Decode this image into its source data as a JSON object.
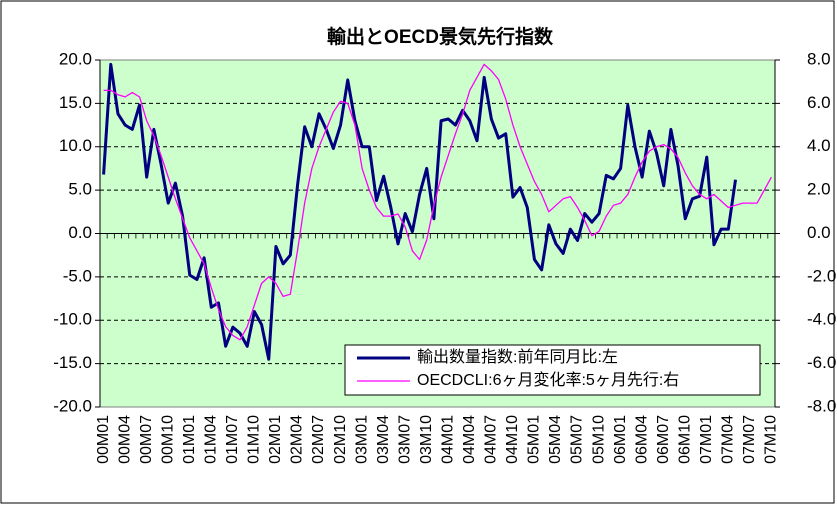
{
  "chart_data": {
    "type": "line",
    "title": "輸出とOECD景気先行指数",
    "categories": [
      "00M01",
      null,
      null,
      "00M04",
      null,
      null,
      "00M07",
      null,
      null,
      "00M10",
      null,
      null,
      "01M01",
      null,
      null,
      "01M04",
      null,
      null,
      "01M07",
      null,
      null,
      "01M10",
      null,
      null,
      "02M01",
      null,
      null,
      "02M04",
      null,
      null,
      "02M07",
      null,
      null,
      "02M10",
      null,
      null,
      "03M01",
      null,
      null,
      "03M04",
      null,
      null,
      "03M07",
      null,
      null,
      "03M10",
      null,
      null,
      "04M01",
      null,
      null,
      "04M04",
      null,
      null,
      "04M07",
      null,
      null,
      "04M10",
      null,
      null,
      "05M01",
      null,
      null,
      "05M04",
      null,
      null,
      "05M07",
      null,
      null,
      "05M10",
      null,
      null,
      "06M01",
      null,
      null,
      "06M04",
      null,
      null,
      "06M07",
      null,
      null,
      "06M10",
      null,
      null,
      "07M01",
      null,
      null,
      "07M04",
      null,
      null,
      "07M07",
      null,
      null,
      "07M10"
    ],
    "series": [
      {
        "name": "輸出数量指数:前年同月比:左",
        "color": "#000080",
        "axis": "y",
        "values": [
          6.8,
          19.5,
          13.8,
          12.5,
          12.0,
          14.8,
          6.5,
          12.0,
          8.0,
          3.5,
          5.8,
          2.0,
          -4.8,
          -5.3,
          -2.8,
          -8.5,
          -8.0,
          -13.0,
          -10.8,
          -11.5,
          -13.0,
          -9.0,
          -10.5,
          -14.5,
          -1.5,
          -3.5,
          -2.5,
          5.5,
          12.3,
          10.0,
          13.8,
          12.0,
          9.8,
          12.5,
          17.7,
          13.0,
          10.0,
          10.0,
          3.8,
          6.6,
          3.0,
          -1.2,
          2.3,
          0.2,
          4.5,
          7.5,
          1.7,
          13.0,
          13.2,
          12.5,
          14.2,
          13.0,
          10.7,
          18.0,
          13.2,
          11.0,
          11.5,
          4.2,
          5.3,
          3.0,
          -3.0,
          -4.2,
          1.0,
          -1.2,
          -2.3,
          0.5,
          -0.8,
          2.3,
          1.3,
          2.3,
          6.7,
          6.3,
          7.5,
          14.8,
          10.0,
          6.5,
          11.8,
          9.3,
          5.5,
          12.0,
          7.8,
          1.7,
          4.0,
          4.3,
          8.8,
          -1.3,
          0.5,
          0.5,
          6.2,
          null,
          null,
          null,
          null,
          null
        ]
      },
      {
        "name": "OECDCLI:6ヶ月変化率:5ヶ月先行:右",
        "color": "#ff00ff",
        "axis": "y2",
        "values": [
          6.6,
          6.6,
          6.4,
          6.3,
          6.5,
          6.3,
          5.2,
          4.5,
          3.6,
          2.6,
          1.6,
          0.7,
          -0.2,
          -0.8,
          -1.4,
          -2.5,
          -3.5,
          -4.3,
          -4.7,
          -4.9,
          -4.3,
          -3.3,
          -2.3,
          -2.0,
          -2.3,
          -2.9,
          -2.8,
          -0.8,
          1.4,
          3.0,
          4.0,
          4.8,
          5.6,
          6.1,
          6.0,
          5.0,
          3.0,
          2.0,
          1.2,
          0.8,
          0.8,
          0.9,
          0.3,
          -0.8,
          -1.2,
          -0.3,
          1.3,
          2.6,
          3.6,
          4.6,
          5.5,
          6.6,
          7.2,
          7.8,
          7.5,
          7.1,
          6.2,
          5.0,
          4.0,
          3.2,
          2.4,
          1.8,
          1.0,
          1.3,
          1.6,
          1.7,
          1.2,
          0.6,
          -0.1,
          0.1,
          0.8,
          1.3,
          1.4,
          1.8,
          2.6,
          3.3,
          3.8,
          4.0,
          4.1,
          3.9,
          3.5,
          2.8,
          2.2,
          1.8,
          1.6,
          1.8,
          1.5,
          1.2,
          1.3,
          1.4,
          1.4,
          1.4,
          2.0,
          2.6
        ]
      }
    ],
    "ylim": [
      -20,
      20
    ],
    "yticks": [
      {
        "value": -20,
        "label": "-20.0"
      },
      {
        "value": -15,
        "label": "-15.0"
      },
      {
        "value": -10,
        "label": "-10.0"
      },
      {
        "value": -5,
        "label": "-5.0"
      },
      {
        "value": 0,
        "label": "0.0"
      },
      {
        "value": 5,
        "label": "5.0"
      },
      {
        "value": 10,
        "label": "10.0"
      },
      {
        "value": 15,
        "label": "15.0"
      },
      {
        "value": 20,
        "label": "20.0"
      }
    ],
    "y2lim": [
      -8,
      8
    ],
    "y2ticks": [
      {
        "value": -8,
        "label": "-8.0"
      },
      {
        "value": -6,
        "label": "-6.0"
      },
      {
        "value": -4,
        "label": "-4.0"
      },
      {
        "value": -2,
        "label": "-2.0"
      },
      {
        "value": 0,
        "label": "0.0"
      },
      {
        "value": 2,
        "label": "2.0"
      },
      {
        "value": 4,
        "label": "4.0"
      },
      {
        "value": 6,
        "label": "6.0"
      },
      {
        "value": 8,
        "label": "8.0"
      }
    ],
    "grid": true,
    "legend": "lower right",
    "background": "#ccffcc"
  }
}
